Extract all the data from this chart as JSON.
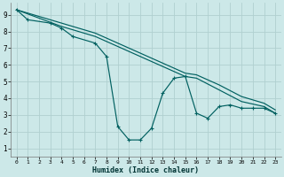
{
  "xlabel": "Humidex (Indice chaleur)",
  "bg_color": "#cce8e8",
  "grid_color": "#b0d0d0",
  "line_color": "#006060",
  "xlim": [
    -0.5,
    23.5
  ],
  "ylim": [
    0.5,
    9.7
  ],
  "xtick_labels": [
    "0",
    "1",
    "2",
    "3",
    "4",
    "5",
    "6",
    "7",
    "8",
    "9",
    "10",
    "11",
    "12",
    "13",
    "14",
    "15",
    "16",
    "17",
    "18",
    "19",
    "20",
    "21",
    "22",
    "23"
  ],
  "ytick_labels": [
    "1",
    "2",
    "3",
    "4",
    "5",
    "6",
    "7",
    "8",
    "9"
  ],
  "series_main": {
    "x": [
      0,
      1,
      3,
      4,
      5,
      7,
      8,
      9,
      10,
      11,
      12,
      13,
      14,
      15,
      16,
      17,
      18,
      19,
      20,
      21,
      22,
      23
    ],
    "y": [
      9.3,
      8.7,
      8.5,
      8.2,
      7.7,
      7.3,
      6.5,
      2.3,
      1.5,
      1.5,
      2.2,
      4.3,
      5.2,
      5.3,
      3.1,
      2.8,
      3.5,
      3.6,
      3.4,
      3.4,
      3.4,
      3.1
    ]
  },
  "series_line1": {
    "x": [
      0,
      4,
      7,
      15,
      16,
      18,
      20,
      22,
      23
    ],
    "y": [
      9.3,
      8.3,
      7.7,
      5.3,
      5.2,
      4.5,
      3.8,
      3.5,
      3.1
    ]
  },
  "series_line2": {
    "x": [
      0,
      4,
      7,
      15,
      16,
      18,
      20,
      22,
      23
    ],
    "y": [
      9.3,
      8.5,
      7.9,
      5.5,
      5.4,
      4.8,
      4.1,
      3.7,
      3.3
    ]
  }
}
